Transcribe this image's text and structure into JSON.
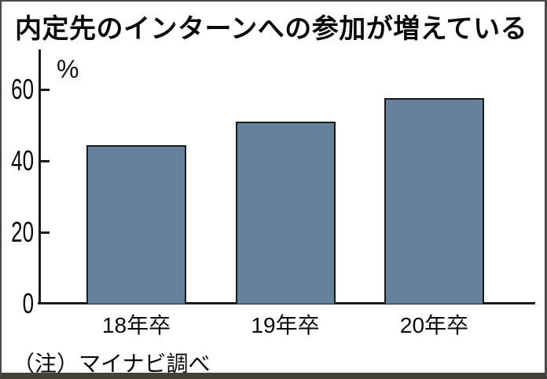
{
  "title": "内定先のインターンへの参加が増えている",
  "note": "（注）マイナビ調べ",
  "chart_data": {
    "type": "bar",
    "title": "内定先のインターンへの参加が増えている",
    "categories": [
      "18年卒",
      "19年卒",
      "20年卒"
    ],
    "values": [
      44.5,
      51.0,
      57.5
    ],
    "xlabel": "",
    "ylabel": "%",
    "unit_label": "%",
    "yticks": [
      0,
      20,
      40,
      60
    ],
    "ylim": [
      0,
      71
    ],
    "grid": false,
    "legend": false,
    "bar_color": "#66819B",
    "bar_border_color": "#1b1b1b",
    "axis_color": "#1a1a1a",
    "source_note": "（注）マイナビ調べ"
  }
}
